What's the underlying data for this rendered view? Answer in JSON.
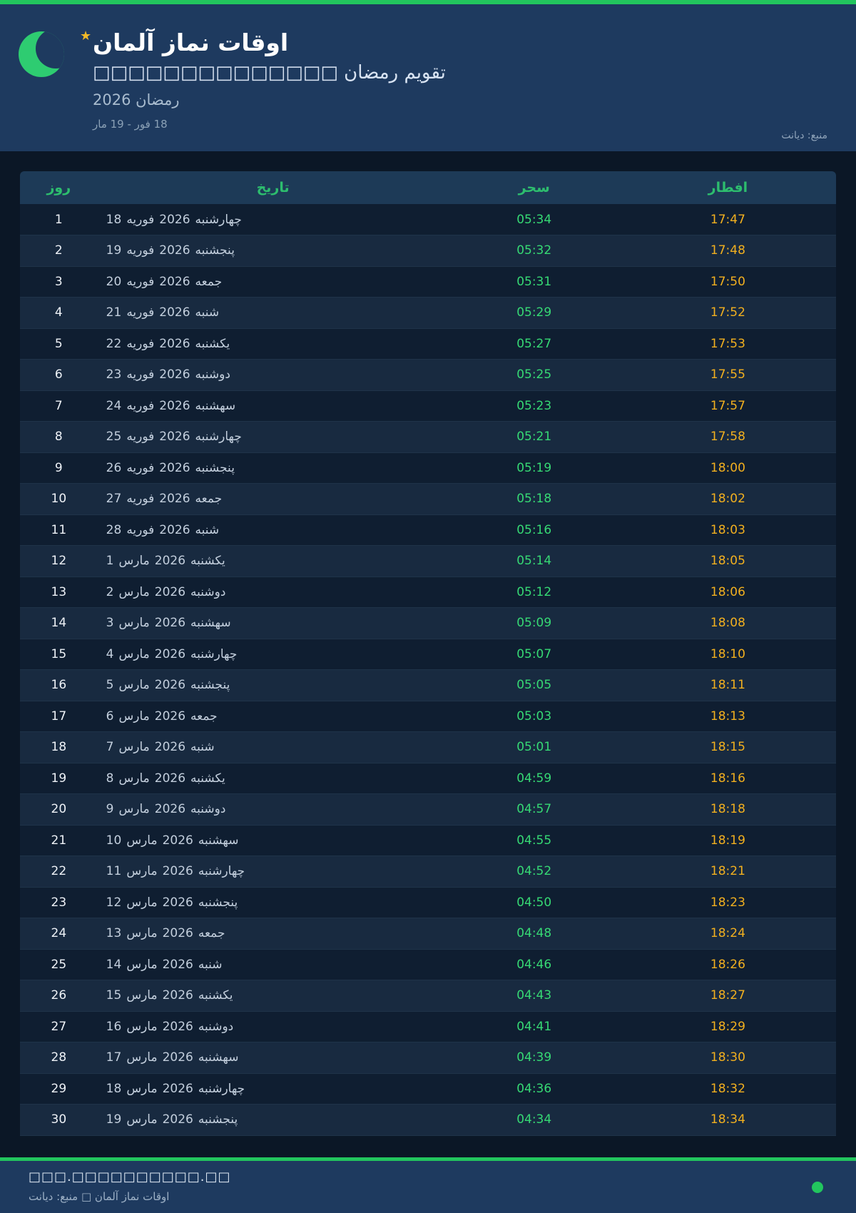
{
  "header": {
    "title": "اوقات نماز آلمان",
    "subtitle": "تقویم رمضان □□□□□□□□□□□□□□",
    "season": "رمضان 2026",
    "date_range": "18 فور - 19 مار",
    "source": "منبع: دیانت"
  },
  "icons": {
    "moon": "crescent-moon",
    "star": "star",
    "star_glyph": "★",
    "footer_dot": "green-dot"
  },
  "colors": {
    "accent_green": "#22c55e",
    "header_bg": "#1e3a5f",
    "section_bg": "#0b1726",
    "table_header_text": "#2dbd6e",
    "suhoor_time": "#36d974",
    "iftar_time": "#f2b01f"
  },
  "table": {
    "columns": [
      {
        "key": "day",
        "label": "روز"
      },
      {
        "key": "date",
        "label": "تاریخ"
      },
      {
        "key": "suhoor",
        "label": "سحر"
      },
      {
        "key": "iftar",
        "label": "افطار"
      }
    ],
    "rows": [
      {
        "day": "1",
        "date_day": "18",
        "month": "فوریه",
        "year": "2026",
        "weekday": "چهارشنبه",
        "suhoor": "05:34",
        "iftar": "17:47"
      },
      {
        "day": "2",
        "date_day": "19",
        "month": "فوریه",
        "year": "2026",
        "weekday": "پنجشنبه",
        "suhoor": "05:32",
        "iftar": "17:48"
      },
      {
        "day": "3",
        "date_day": "20",
        "month": "فوریه",
        "year": "2026",
        "weekday": "جمعه",
        "suhoor": "05:31",
        "iftar": "17:50"
      },
      {
        "day": "4",
        "date_day": "21",
        "month": "فوریه",
        "year": "2026",
        "weekday": "شنبه",
        "suhoor": "05:29",
        "iftar": "17:52"
      },
      {
        "day": "5",
        "date_day": "22",
        "month": "فوریه",
        "year": "2026",
        "weekday": "یکشنبه",
        "suhoor": "05:27",
        "iftar": "17:53"
      },
      {
        "day": "6",
        "date_day": "23",
        "month": "فوریه",
        "year": "2026",
        "weekday": "دوشنبه",
        "suhoor": "05:25",
        "iftar": "17:55"
      },
      {
        "day": "7",
        "date_day": "24",
        "month": "فوریه",
        "year": "2026",
        "weekday": "سهشنبه",
        "suhoor": "05:23",
        "iftar": "17:57"
      },
      {
        "day": "8",
        "date_day": "25",
        "month": "فوریه",
        "year": "2026",
        "weekday": "چهارشنبه",
        "suhoor": "05:21",
        "iftar": "17:58"
      },
      {
        "day": "9",
        "date_day": "26",
        "month": "فوریه",
        "year": "2026",
        "weekday": "پنجشنبه",
        "suhoor": "05:19",
        "iftar": "18:00"
      },
      {
        "day": "10",
        "date_day": "27",
        "month": "فوریه",
        "year": "2026",
        "weekday": "جمعه",
        "suhoor": "05:18",
        "iftar": "18:02"
      },
      {
        "day": "11",
        "date_day": "28",
        "month": "فوریه",
        "year": "2026",
        "weekday": "شنبه",
        "suhoor": "05:16",
        "iftar": "18:03"
      },
      {
        "day": "12",
        "date_day": "1",
        "month": "مارس",
        "year": "2026",
        "weekday": "یکشنبه",
        "suhoor": "05:14",
        "iftar": "18:05"
      },
      {
        "day": "13",
        "date_day": "2",
        "month": "مارس",
        "year": "2026",
        "weekday": "دوشنبه",
        "suhoor": "05:12",
        "iftar": "18:06"
      },
      {
        "day": "14",
        "date_day": "3",
        "month": "مارس",
        "year": "2026",
        "weekday": "سهشنبه",
        "suhoor": "05:09",
        "iftar": "18:08"
      },
      {
        "day": "15",
        "date_day": "4",
        "month": "مارس",
        "year": "2026",
        "weekday": "چهارشنبه",
        "suhoor": "05:07",
        "iftar": "18:10"
      },
      {
        "day": "16",
        "date_day": "5",
        "month": "مارس",
        "year": "2026",
        "weekday": "پنجشنبه",
        "suhoor": "05:05",
        "iftar": "18:11"
      },
      {
        "day": "17",
        "date_day": "6",
        "month": "مارس",
        "year": "2026",
        "weekday": "جمعه",
        "suhoor": "05:03",
        "iftar": "18:13"
      },
      {
        "day": "18",
        "date_day": "7",
        "month": "مارس",
        "year": "2026",
        "weekday": "شنبه",
        "suhoor": "05:01",
        "iftar": "18:15"
      },
      {
        "day": "19",
        "date_day": "8",
        "month": "مارس",
        "year": "2026",
        "weekday": "یکشنبه",
        "suhoor": "04:59",
        "iftar": "18:16"
      },
      {
        "day": "20",
        "date_day": "9",
        "month": "مارس",
        "year": "2026",
        "weekday": "دوشنبه",
        "suhoor": "04:57",
        "iftar": "18:18"
      },
      {
        "day": "21",
        "date_day": "10",
        "month": "مارس",
        "year": "2026",
        "weekday": "سهشنبه",
        "suhoor": "04:55",
        "iftar": "18:19"
      },
      {
        "day": "22",
        "date_day": "11",
        "month": "مارس",
        "year": "2026",
        "weekday": "چهارشنبه",
        "suhoor": "04:52",
        "iftar": "18:21"
      },
      {
        "day": "23",
        "date_day": "12",
        "month": "مارس",
        "year": "2026",
        "weekday": "پنجشنبه",
        "suhoor": "04:50",
        "iftar": "18:23"
      },
      {
        "day": "24",
        "date_day": "13",
        "month": "مارس",
        "year": "2026",
        "weekday": "جمعه",
        "suhoor": "04:48",
        "iftar": "18:24"
      },
      {
        "day": "25",
        "date_day": "14",
        "month": "مارس",
        "year": "2026",
        "weekday": "شنبه",
        "suhoor": "04:46",
        "iftar": "18:26"
      },
      {
        "day": "26",
        "date_day": "15",
        "month": "مارس",
        "year": "2026",
        "weekday": "یکشنبه",
        "suhoor": "04:43",
        "iftar": "18:27"
      },
      {
        "day": "27",
        "date_day": "16",
        "month": "مارس",
        "year": "2026",
        "weekday": "دوشنبه",
        "suhoor": "04:41",
        "iftar": "18:29"
      },
      {
        "day": "28",
        "date_day": "17",
        "month": "مارس",
        "year": "2026",
        "weekday": "سهشنبه",
        "suhoor": "04:39",
        "iftar": "18:30"
      },
      {
        "day": "29",
        "date_day": "18",
        "month": "مارس",
        "year": "2026",
        "weekday": "چهارشنبه",
        "suhoor": "04:36",
        "iftar": "18:32"
      },
      {
        "day": "30",
        "date_day": "19",
        "month": "مارس",
        "year": "2026",
        "weekday": "پنجشنبه",
        "suhoor": "04:34",
        "iftar": "18:34"
      }
    ]
  },
  "footer": {
    "line1": "□□□.□□□□□□□□□□.□□",
    "line2": "اوقات نماز آلمان □ منبع: دیانت"
  }
}
